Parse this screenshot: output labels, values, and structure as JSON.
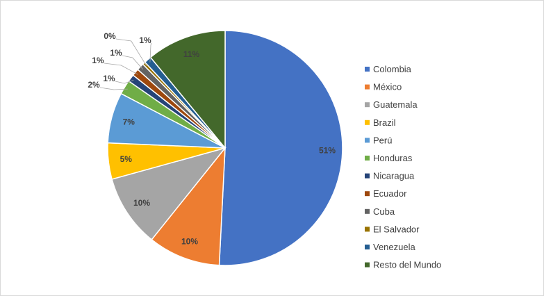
{
  "chart_data": {
    "type": "pie",
    "title": "",
    "legend_placement": "right",
    "slices": [
      {
        "name": "Colombia",
        "value": 51,
        "label": "51%",
        "color": "#4472c4"
      },
      {
        "name": "México",
        "value": 10,
        "label": "10%",
        "color": "#ed7d31"
      },
      {
        "name": "Guatemala",
        "value": 10,
        "label": "10%",
        "color": "#a5a5a5"
      },
      {
        "name": "Brazil",
        "value": 5,
        "label": "5%",
        "color": "#ffc000"
      },
      {
        "name": "Perú",
        "value": 7,
        "label": "7%",
        "color": "#5b9bd5"
      },
      {
        "name": "Honduras",
        "value": 2,
        "label": "2%",
        "color": "#70ad47"
      },
      {
        "name": "Nicaragua",
        "value": 1,
        "label": "1%",
        "color": "#264478"
      },
      {
        "name": "Ecuador",
        "value": 1,
        "label": "1%",
        "color": "#9e480e"
      },
      {
        "name": "Cuba",
        "value": 1,
        "label": "1%",
        "color": "#636363"
      },
      {
        "name": "El Salvador",
        "value": 0.4,
        "label": "0%",
        "color": "#997300"
      },
      {
        "name": "Venezuela",
        "value": 1,
        "label": "1%",
        "color": "#255e91"
      },
      {
        "name": "Resto del Mundo",
        "value": 11,
        "label": "11%",
        "color": "#43682b"
      }
    ]
  }
}
